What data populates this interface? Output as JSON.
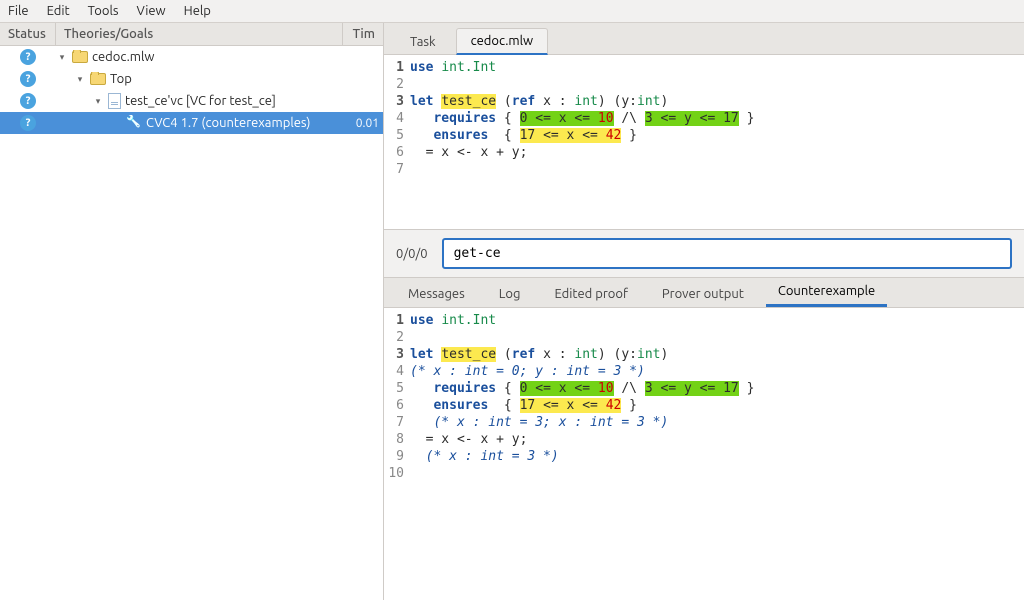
{
  "menubar": [
    "File",
    "Edit",
    "Tools",
    "View",
    "Help"
  ],
  "left_headers": {
    "status": "Status",
    "theories": "Theories/Goals",
    "time": "Tim"
  },
  "tree": [
    {
      "indent": 0,
      "icon": "folder",
      "label": "cedoc.mlw",
      "status": "?",
      "expander": "▾"
    },
    {
      "indent": 1,
      "icon": "folder",
      "label": "Top",
      "status": "?",
      "expander": "▾"
    },
    {
      "indent": 2,
      "icon": "file",
      "label": "test_ce'vc [VC for test_ce]",
      "status": "?",
      "expander": "▾"
    },
    {
      "indent": 3,
      "icon": "wand",
      "label": "CVC4 1.7 (counterexamples)",
      "status": "?",
      "time": "0.01",
      "selected": true,
      "expander": ""
    }
  ],
  "top_tabs": [
    {
      "label": "Task",
      "active": false
    },
    {
      "label": "cedoc.mlw",
      "active": true
    }
  ],
  "code_top": [
    {
      "n": "1",
      "bold": true,
      "seg": [
        {
          "t": "use ",
          "c": "kw"
        },
        {
          "t": "int.Int",
          "c": "ty"
        }
      ]
    },
    {
      "n": "2",
      "seg": []
    },
    {
      "n": "3",
      "bold": true,
      "seg": [
        {
          "t": "let ",
          "c": "kw"
        },
        {
          "t": "test_ce",
          "c": "hl-y"
        },
        {
          "t": " (",
          "c": ""
        },
        {
          "t": "ref",
          "c": "kw"
        },
        {
          "t": " x : ",
          "c": ""
        },
        {
          "t": "int",
          "c": "ty"
        },
        {
          "t": ") (y:",
          "c": ""
        },
        {
          "t": "int",
          "c": "ty"
        },
        {
          "t": ")",
          "c": ""
        }
      ]
    },
    {
      "n": "4",
      "seg": [
        {
          "t": "   ",
          "c": ""
        },
        {
          "t": "requires",
          "c": "kw"
        },
        {
          "t": " { ",
          "c": ""
        },
        {
          "t": "0 <= x <= ",
          "c": "hl-g"
        },
        {
          "t": "10",
          "c": "hl-g hl-r"
        },
        {
          "t": " /\\ ",
          "c": ""
        },
        {
          "t": "3 <= y <= 17",
          "c": "hl-g"
        },
        {
          "t": " }",
          "c": ""
        }
      ]
    },
    {
      "n": "5",
      "seg": [
        {
          "t": "   ",
          "c": ""
        },
        {
          "t": "ensures",
          "c": "kw"
        },
        {
          "t": "  { ",
          "c": ""
        },
        {
          "t": "17 <= x <= ",
          "c": "hl-y"
        },
        {
          "t": "42",
          "c": "hl-y hl-r"
        },
        {
          "t": " }",
          "c": ""
        }
      ]
    },
    {
      "n": "6",
      "seg": [
        {
          "t": "  = x <- x + y;",
          "c": ""
        }
      ]
    },
    {
      "n": "7",
      "seg": []
    }
  ],
  "cmd": {
    "pos": "0/0/0",
    "value": "get-ce"
  },
  "bottom_tabs": [
    {
      "label": "Messages",
      "active": false
    },
    {
      "label": "Log",
      "active": false
    },
    {
      "label": "Edited proof",
      "active": false
    },
    {
      "label": "Prover output",
      "active": false
    },
    {
      "label": "Counterexample",
      "active": true
    }
  ],
  "code_bot": [
    {
      "n": "1",
      "bold": true,
      "seg": [
        {
          "t": "use ",
          "c": "kw"
        },
        {
          "t": "int.Int",
          "c": "ty"
        }
      ]
    },
    {
      "n": "2",
      "seg": []
    },
    {
      "n": "3",
      "bold": true,
      "seg": [
        {
          "t": "let ",
          "c": "kw"
        },
        {
          "t": "test_ce",
          "c": "hl-y"
        },
        {
          "t": " (",
          "c": ""
        },
        {
          "t": "ref",
          "c": "kw"
        },
        {
          "t": " x : ",
          "c": ""
        },
        {
          "t": "int",
          "c": "ty"
        },
        {
          "t": ") (y:",
          "c": ""
        },
        {
          "t": "int",
          "c": "ty"
        },
        {
          "t": ")",
          "c": ""
        }
      ]
    },
    {
      "n": "4",
      "seg": [
        {
          "t": "(* x : int = 0; y : int = 3 *)",
          "c": "cm"
        }
      ]
    },
    {
      "n": "5",
      "seg": [
        {
          "t": "   ",
          "c": ""
        },
        {
          "t": "requires",
          "c": "kw"
        },
        {
          "t": " { ",
          "c": ""
        },
        {
          "t": "0 <= x <= ",
          "c": "hl-g"
        },
        {
          "t": "10",
          "c": "hl-g hl-r"
        },
        {
          "t": " /\\ ",
          "c": ""
        },
        {
          "t": "3 <= y <= 17",
          "c": "hl-g"
        },
        {
          "t": " }",
          "c": ""
        }
      ]
    },
    {
      "n": "6",
      "seg": [
        {
          "t": "   ",
          "c": ""
        },
        {
          "t": "ensures",
          "c": "kw"
        },
        {
          "t": "  { ",
          "c": ""
        },
        {
          "t": "17 <= x <= ",
          "c": "hl-y"
        },
        {
          "t": "42",
          "c": "hl-y hl-r"
        },
        {
          "t": " }",
          "c": ""
        }
      ]
    },
    {
      "n": "7",
      "seg": [
        {
          "t": "   (* x : int = 3; x : int = 3 *)",
          "c": "cm"
        }
      ]
    },
    {
      "n": "8",
      "seg": [
        {
          "t": "  = x <- x + y;",
          "c": ""
        }
      ]
    },
    {
      "n": "9",
      "seg": [
        {
          "t": "  (* x : int = 3 *)",
          "c": "cm"
        }
      ]
    },
    {
      "n": "10",
      "seg": []
    }
  ]
}
